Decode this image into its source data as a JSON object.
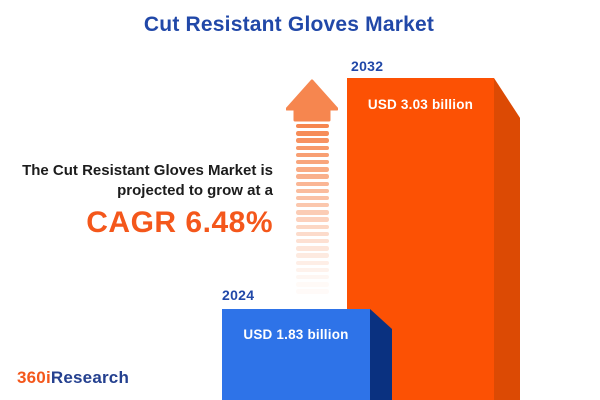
{
  "title": "Cut Resistant Gloves Market",
  "description": {
    "line1": "The Cut Resistant Gloves Market is",
    "line2": "projected to grow at a",
    "cagr": "CAGR 6.48%"
  },
  "bars": {
    "b2024": {
      "year": "2024",
      "value_label": "USD 1.83 billion"
    },
    "b2032": {
      "year": "2032",
      "value_label": "USD 3.03 billion"
    }
  },
  "logo": {
    "part1": "360i",
    "part2": "Research"
  },
  "arrow": {
    "dash_count": 24
  },
  "colors": {
    "title_blue": "#2148A8",
    "accent_orange": "#F4571B",
    "text_dark": "#1C1C1C",
    "bar_2032_front": "#FC5104",
    "bar_2032_side": "#DC4A04",
    "bar_2024_front": "#2E73E8",
    "bar_2024_side": "#0A3180",
    "arrow_orange": "#F6864F",
    "logo_navy": "#24408F"
  },
  "chart_data": {
    "type": "bar",
    "title": "Cut Resistant Gloves Market",
    "categories": [
      "2024",
      "2032"
    ],
    "values": [
      1.83,
      3.03
    ],
    "unit": "USD billion",
    "value_labels": [
      "USD 1.83 billion",
      "USD 3.03 billion"
    ],
    "series_colors": [
      "#2E73E8",
      "#FC5104"
    ],
    "annotation": "The Cut Resistant Gloves Market is projected to grow at a CAGR 6.48%",
    "cagr_percent": 6.48,
    "legend": false,
    "axes_shown": false
  }
}
